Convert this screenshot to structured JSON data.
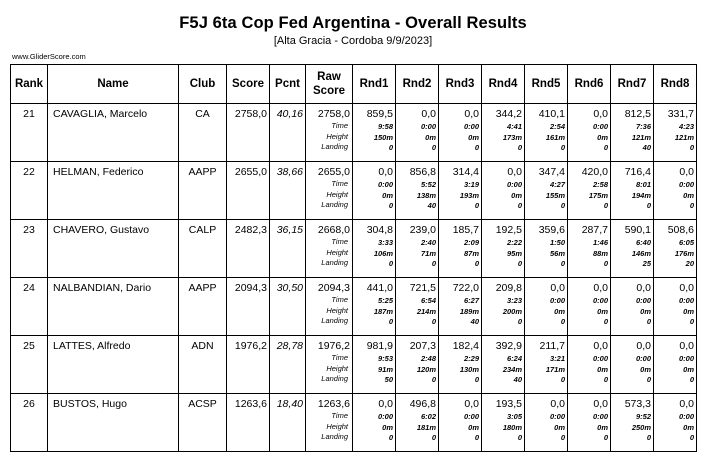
{
  "header": {
    "title": "F5J 6ta Cop Fed Argentina - Overall Results",
    "subtitle": "[Alta Gracia - Cordoba 9/9/2023]",
    "site": "www.GliderScore.com"
  },
  "columns": {
    "rank": "Rank",
    "name": "Name",
    "club": "Club",
    "score": "Score",
    "pcnt": "Pcnt",
    "raw_line1": "Raw",
    "raw_line2": "Score",
    "rounds": [
      "Rnd1",
      "Rnd2",
      "Rnd3",
      "Rnd4",
      "Rnd5",
      "Rnd6",
      "Rnd7",
      "Rnd8"
    ]
  },
  "detail_labels": {
    "time": "Time",
    "height": "Height",
    "landing": "Landing"
  },
  "rows": [
    {
      "rank": "21",
      "name": "CAVAGLIA, Marcelo",
      "club": "CA",
      "score": "2758,0",
      "pcnt": "40,16",
      "raw": "2758,0",
      "rounds": [
        {
          "score": "859,5",
          "time": "9:58",
          "height": "150m",
          "landing": "0"
        },
        {
          "score": "0,0",
          "time": "0:00",
          "height": "0m",
          "landing": "0"
        },
        {
          "score": "0,0",
          "time": "0:00",
          "height": "0m",
          "landing": "0"
        },
        {
          "score": "344,2",
          "time": "4:41",
          "height": "173m",
          "landing": "0"
        },
        {
          "score": "410,1",
          "time": "2:54",
          "height": "161m",
          "landing": "0"
        },
        {
          "score": "0,0",
          "time": "0:00",
          "height": "0m",
          "landing": "0"
        },
        {
          "score": "812,5",
          "time": "7:36",
          "height": "121m",
          "landing": "40"
        },
        {
          "score": "331,7",
          "time": "4:23",
          "height": "121m",
          "landing": "0"
        }
      ]
    },
    {
      "rank": "22",
      "name": "HELMAN, Federico",
      "club": "AAPP",
      "score": "2655,0",
      "pcnt": "38,66",
      "raw": "2655,0",
      "rounds": [
        {
          "score": "0,0",
          "time": "0:00",
          "height": "0m",
          "landing": "0"
        },
        {
          "score": "856,8",
          "time": "5:52",
          "height": "138m",
          "landing": "40"
        },
        {
          "score": "314,4",
          "time": "3:19",
          "height": "193m",
          "landing": "0"
        },
        {
          "score": "0,0",
          "time": "0:00",
          "height": "0m",
          "landing": "0"
        },
        {
          "score": "347,4",
          "time": "4:27",
          "height": "155m",
          "landing": "0"
        },
        {
          "score": "420,0",
          "time": "2:58",
          "height": "175m",
          "landing": "0"
        },
        {
          "score": "716,4",
          "time": "8:01",
          "height": "194m",
          "landing": "0"
        },
        {
          "score": "0,0",
          "time": "0:00",
          "height": "0m",
          "landing": "0"
        }
      ]
    },
    {
      "rank": "23",
      "name": "CHAVERO, Gustavo",
      "club": "CALP",
      "score": "2482,3",
      "pcnt": "36,15",
      "raw": "2668,0",
      "rounds": [
        {
          "score": "304,8",
          "time": "3:33",
          "height": "106m",
          "landing": "0"
        },
        {
          "score": "239,0",
          "time": "2:40",
          "height": "71m",
          "landing": "0"
        },
        {
          "score": "185,7",
          "time": "2:09",
          "height": "87m",
          "landing": "0"
        },
        {
          "score": "192,5",
          "time": "2:22",
          "height": "95m",
          "landing": "0"
        },
        {
          "score": "359,6",
          "time": "1:50",
          "height": "56m",
          "landing": "0"
        },
        {
          "score": "287,7",
          "time": "1:46",
          "height": "88m",
          "landing": "0"
        },
        {
          "score": "590,1",
          "time": "6:40",
          "height": "146m",
          "landing": "25"
        },
        {
          "score": "508,6",
          "time": "6:05",
          "height": "176m",
          "landing": "20"
        }
      ]
    },
    {
      "rank": "24",
      "name": "NALBANDIAN, Dario",
      "club": "AAPP",
      "score": "2094,3",
      "pcnt": "30,50",
      "raw": "2094,3",
      "rounds": [
        {
          "score": "441,0",
          "time": "5:25",
          "height": "187m",
          "landing": "0"
        },
        {
          "score": "721,5",
          "time": "6:54",
          "height": "214m",
          "landing": "0"
        },
        {
          "score": "722,0",
          "time": "6:27",
          "height": "189m",
          "landing": "40"
        },
        {
          "score": "209,8",
          "time": "3:23",
          "height": "200m",
          "landing": "0"
        },
        {
          "score": "0,0",
          "time": "0:00",
          "height": "0m",
          "landing": "0"
        },
        {
          "score": "0,0",
          "time": "0:00",
          "height": "0m",
          "landing": "0"
        },
        {
          "score": "0,0",
          "time": "0:00",
          "height": "0m",
          "landing": "0"
        },
        {
          "score": "0,0",
          "time": "0:00",
          "height": "0m",
          "landing": "0"
        }
      ]
    },
    {
      "rank": "25",
      "name": "LATTES, Alfredo",
      "club": "ADN",
      "score": "1976,2",
      "pcnt": "28,78",
      "raw": "1976,2",
      "rounds": [
        {
          "score": "981,9",
          "time": "9:53",
          "height": "91m",
          "landing": "50"
        },
        {
          "score": "207,3",
          "time": "2:48",
          "height": "120m",
          "landing": "0"
        },
        {
          "score": "182,4",
          "time": "2:29",
          "height": "130m",
          "landing": "0"
        },
        {
          "score": "392,9",
          "time": "6:24",
          "height": "234m",
          "landing": "40"
        },
        {
          "score": "211,7",
          "time": "3:21",
          "height": "171m",
          "landing": "0"
        },
        {
          "score": "0,0",
          "time": "0:00",
          "height": "0m",
          "landing": "0"
        },
        {
          "score": "0,0",
          "time": "0:00",
          "height": "0m",
          "landing": "0"
        },
        {
          "score": "0,0",
          "time": "0:00",
          "height": "0m",
          "landing": "0"
        }
      ]
    },
    {
      "rank": "26",
      "name": "BUSTOS, Hugo",
      "club": "ACSP",
      "score": "1263,6",
      "pcnt": "18,40",
      "raw": "1263,6",
      "rounds": [
        {
          "score": "0,0",
          "time": "0:00",
          "height": "0m",
          "landing": "0"
        },
        {
          "score": "496,8",
          "time": "6:02",
          "height": "181m",
          "landing": "0"
        },
        {
          "score": "0,0",
          "time": "0:00",
          "height": "0m",
          "landing": "0"
        },
        {
          "score": "193,5",
          "time": "3:05",
          "height": "180m",
          "landing": "0"
        },
        {
          "score": "0,0",
          "time": "0:00",
          "height": "0m",
          "landing": "0"
        },
        {
          "score": "0,0",
          "time": "0:00",
          "height": "0m",
          "landing": "0"
        },
        {
          "score": "573,3",
          "time": "9:52",
          "height": "250m",
          "landing": "0"
        },
        {
          "score": "0,0",
          "time": "0:00",
          "height": "0m",
          "landing": "0"
        }
      ]
    }
  ]
}
